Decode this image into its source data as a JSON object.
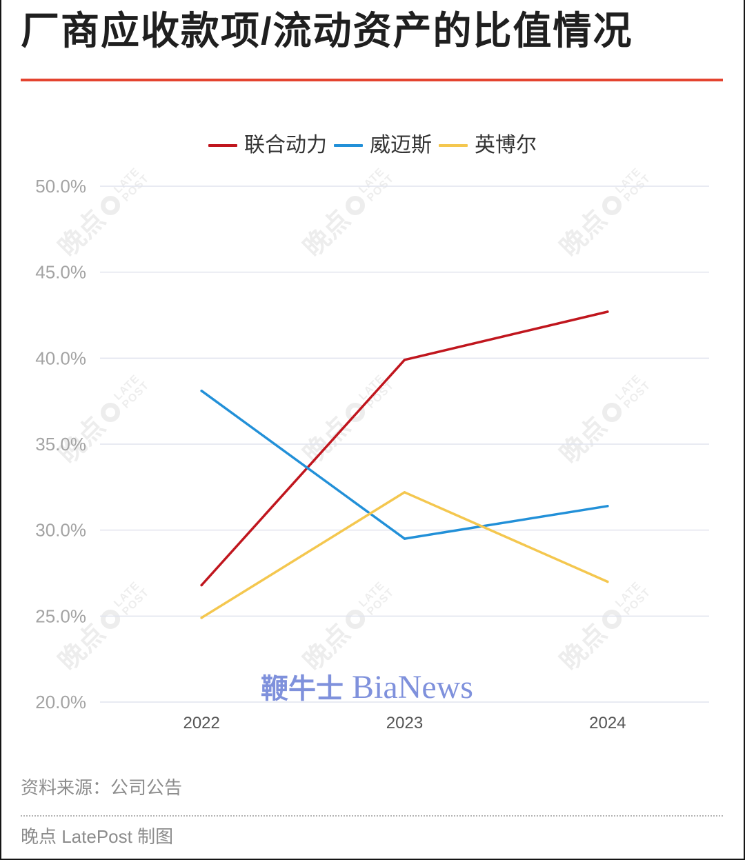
{
  "chart_data": {
    "type": "line",
    "title": "厂商应收款项/流动资产的比值情况",
    "categories": [
      "2022",
      "2023",
      "2024"
    ],
    "series": [
      {
        "name": "联合动力",
        "color": "#c0161e",
        "values": [
          26.8,
          39.9,
          42.7
        ]
      },
      {
        "name": "威迈斯",
        "color": "#2290d8",
        "values": [
          38.1,
          29.5,
          31.4
        ]
      },
      {
        "name": "英博尔",
        "color": "#f4c74f",
        "values": [
          24.9,
          32.2,
          27.0
        ]
      }
    ],
    "ylim": [
      20,
      50
    ],
    "yticks": [
      20,
      25,
      30,
      35,
      40,
      45,
      50
    ],
    "ytick_labels": [
      "20.0%",
      "25.0%",
      "30.0%",
      "35.0%",
      "40.0%",
      "45.0%",
      "50.0%"
    ],
    "grid": true,
    "legend": "top-center"
  },
  "footer": {
    "source": "资料来源：公司公告",
    "credit": "晚点 LatePost 制图"
  },
  "watermark": {
    "bianews_cn": "鞭牛士",
    "bianews_en": "BiaNews",
    "latepost_cn": "晚点",
    "latepost_en_top": "LATE",
    "latepost_en_bottom": "POST"
  },
  "colors": {
    "title_rule": "#e4432f",
    "grid": "#e0e3ee",
    "watermark_bianews": "#7f91dc"
  }
}
